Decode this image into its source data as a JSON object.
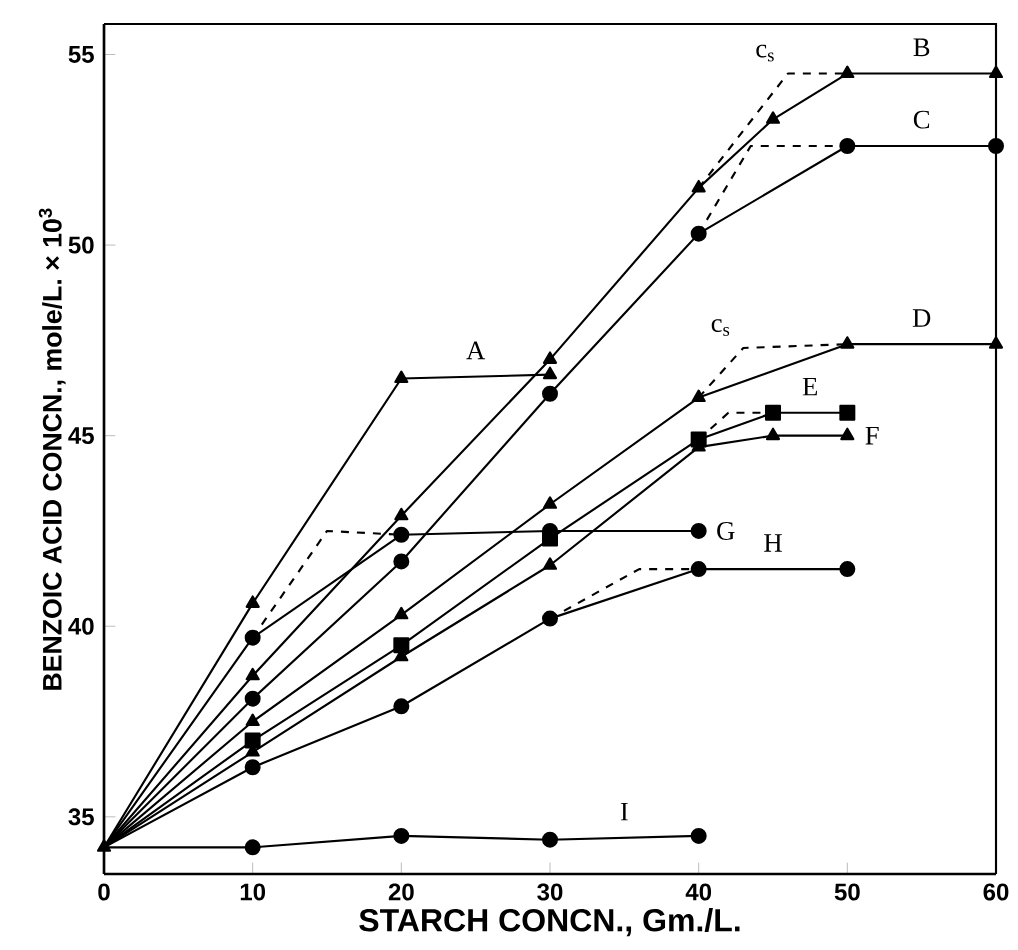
{
  "chart_data": {
    "type": "line",
    "xlabel": "STARCH CONCN., Gm./L.",
    "ylabel": "BENZOIC ACID CONCN., mole/L. × 10$^{3}$",
    "xlim": [
      0,
      60
    ],
    "xticks": [
      0,
      10,
      20,
      30,
      40,
      50,
      60
    ],
    "ylim": [
      33.5,
      55.8
    ],
    "yticks": [
      35,
      40,
      45,
      50,
      55
    ],
    "grid": false,
    "line_style": "solid",
    "series": [
      {
        "name": "A",
        "color": "#000000",
        "marker": "triangle",
        "x": [
          0,
          10,
          20,
          30
        ],
        "values": [
          34.2,
          40.6,
          46.5,
          46.6
        ]
      },
      {
        "name": "B",
        "color": "#000000",
        "marker": "triangle",
        "x": [
          0,
          10,
          20,
          30,
          40,
          45,
          50,
          60
        ],
        "values": [
          34.2,
          38.7,
          42.9,
          47.0,
          51.5,
          53.3,
          54.5,
          54.5
        ]
      },
      {
        "name": "C",
        "color": "#000000",
        "marker": "circle",
        "x": [
          0,
          10,
          20,
          30,
          40,
          50,
          60
        ],
        "values": [
          34.2,
          38.1,
          41.7,
          46.1,
          50.3,
          52.6,
          52.6
        ]
      },
      {
        "name": "D",
        "color": "#000000",
        "marker": "triangle",
        "x": [
          0,
          10,
          20,
          30,
          40,
          50,
          60
        ],
        "values": [
          34.2,
          37.5,
          40.3,
          43.2,
          46.0,
          47.4,
          47.4
        ]
      },
      {
        "name": "E",
        "color": "#000000",
        "marker": "square",
        "x": [
          0,
          10,
          20,
          30,
          40,
          45,
          50
        ],
        "values": [
          34.2,
          37.0,
          39.5,
          42.3,
          44.9,
          45.6,
          45.6
        ]
      },
      {
        "name": "F",
        "color": "#000000",
        "marker": "triangle",
        "x": [
          0,
          10,
          20,
          30,
          40,
          45,
          50
        ],
        "values": [
          34.2,
          36.7,
          39.2,
          41.6,
          44.7,
          45.0,
          45.0
        ]
      },
      {
        "name": "G",
        "color": "#000000",
        "marker": "circle",
        "x": [
          0,
          10,
          20,
          30,
          40
        ],
        "values": [
          34.2,
          39.7,
          42.4,
          42.5,
          42.5
        ]
      },
      {
        "name": "H",
        "color": "#000000",
        "marker": "circle",
        "x": [
          0,
          10,
          20,
          30,
          40,
          50
        ],
        "values": [
          34.2,
          36.3,
          37.9,
          40.2,
          41.5,
          41.5
        ]
      },
      {
        "name": "I",
        "color": "#000000",
        "marker": "circle",
        "x": [
          0,
          10,
          20,
          30,
          40
        ],
        "values": [
          34.2,
          34.2,
          34.5,
          34.4,
          34.5
        ]
      },
      {
        "color": "#000000",
        "marker": "none",
        "line_style": "dashed",
        "x": [
          10,
          15,
          20
        ],
        "values": [
          39.7,
          42.5,
          42.4
        ]
      },
      {
        "color": "#000000",
        "marker": "none",
        "line_style": "dashed",
        "x": [
          40,
          46,
          50
        ],
        "values": [
          51.5,
          54.5,
          54.5
        ]
      },
      {
        "color": "#000000",
        "marker": "none",
        "line_style": "dashed",
        "x": [
          40,
          43.5,
          50
        ],
        "values": [
          50.3,
          52.6,
          52.6
        ]
      },
      {
        "color": "#000000",
        "marker": "none",
        "line_style": "dashed",
        "x": [
          40,
          43,
          50
        ],
        "values": [
          46.0,
          47.3,
          47.4
        ]
      },
      {
        "color": "#000000",
        "marker": "none",
        "line_style": "dashed",
        "x": [
          40,
          42,
          45
        ],
        "values": [
          44.9,
          45.6,
          45.6
        ]
      },
      {
        "color": "#000000",
        "marker": "none",
        "line_style": "dashed",
        "x": [
          30,
          36,
          40
        ],
        "values": [
          40.2,
          41.5,
          41.5
        ]
      }
    ],
    "annotations": [
      {
        "text": "c$_{s}$",
        "x": 46,
        "y": 54.5
      },
      {
        "text": "c$_{s}$",
        "x": 43,
        "y": 47.3
      }
    ]
  }
}
